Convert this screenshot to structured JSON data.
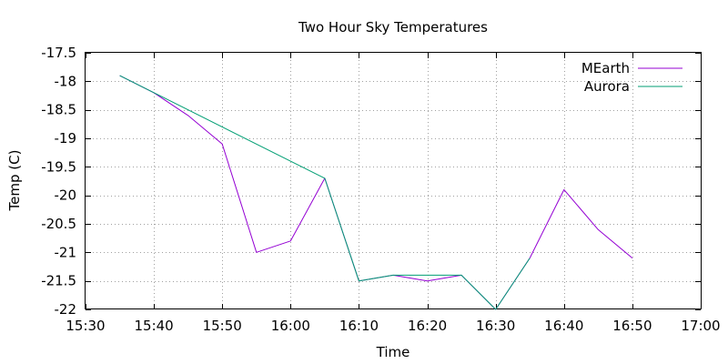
{
  "chart_data": {
    "type": "line",
    "title": "Two Hour Sky Temperatures",
    "xlabel": "Time",
    "ylabel": "Temp (C)",
    "xlim": [
      "15:30",
      "17:00"
    ],
    "ylim": [
      -22,
      -17.5
    ],
    "x_ticks": [
      "15:30",
      "15:40",
      "15:50",
      "16:00",
      "16:10",
      "16:20",
      "16:30",
      "16:40",
      "16:50",
      "17:00"
    ],
    "y_ticks": [
      "-17.5",
      "-18",
      "-18.5",
      "-19",
      "-19.5",
      "-20",
      "-20.5",
      "-21",
      "-21.5",
      "-22"
    ],
    "grid": true,
    "legend_position": "top-right",
    "series": [
      {
        "name": "MEarth",
        "color": "#9400d3",
        "x": [
          "15:35",
          "15:40",
          "15:45",
          "15:50",
          "15:55",
          "16:00",
          "16:05",
          "16:10",
          "16:15",
          "16:20",
          "16:25",
          "16:30",
          "16:35",
          "16:40",
          "16:45",
          "16:50"
        ],
        "y": [
          -17.9,
          -18.2,
          -18.6,
          -19.1,
          -21.0,
          -20.8,
          -19.7,
          -21.5,
          -21.4,
          -21.5,
          -21.4,
          -22.0,
          -21.1,
          -19.9,
          -20.6,
          -21.1
        ]
      },
      {
        "name": "Aurora",
        "color": "#009e73",
        "x": [
          "15:35",
          "16:05",
          "16:10",
          "16:15",
          "16:20",
          "16:25",
          "16:30",
          "16:35"
        ],
        "y": [
          -17.9,
          -19.7,
          -21.5,
          -21.4,
          -21.4,
          -21.4,
          -22.0,
          -21.1
        ]
      }
    ]
  }
}
